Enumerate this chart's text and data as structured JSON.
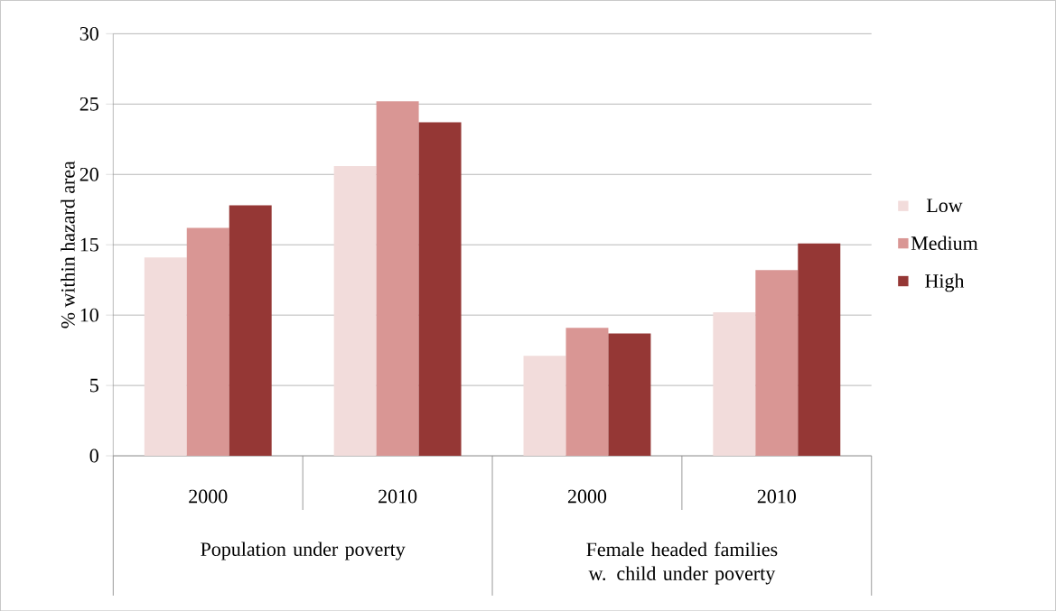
{
  "chart_data": {
    "type": "bar",
    "ylabel": "% within hazard area",
    "categories": [
      "2000",
      "2010",
      "2000",
      "2010"
    ],
    "annotations": [
      "Population under poverty",
      "Female headed families w. child under poverty"
    ],
    "series": [
      {
        "name": "Low",
        "color": "#f2dcdb",
        "values": [
          14.1,
          20.6,
          7.1,
          10.2
        ]
      },
      {
        "name": "Medium",
        "color": "#d99694",
        "values": [
          16.2,
          25.2,
          9.1,
          13.2
        ]
      },
      {
        "name": "High",
        "color": "#953735",
        "values": [
          17.8,
          23.7,
          8.7,
          15.1
        ]
      }
    ],
    "ylim": [
      0,
      30
    ],
    "yticks": [
      0,
      5,
      10,
      15,
      20,
      25,
      30
    ],
    "grid": "y",
    "legend": "right"
  }
}
